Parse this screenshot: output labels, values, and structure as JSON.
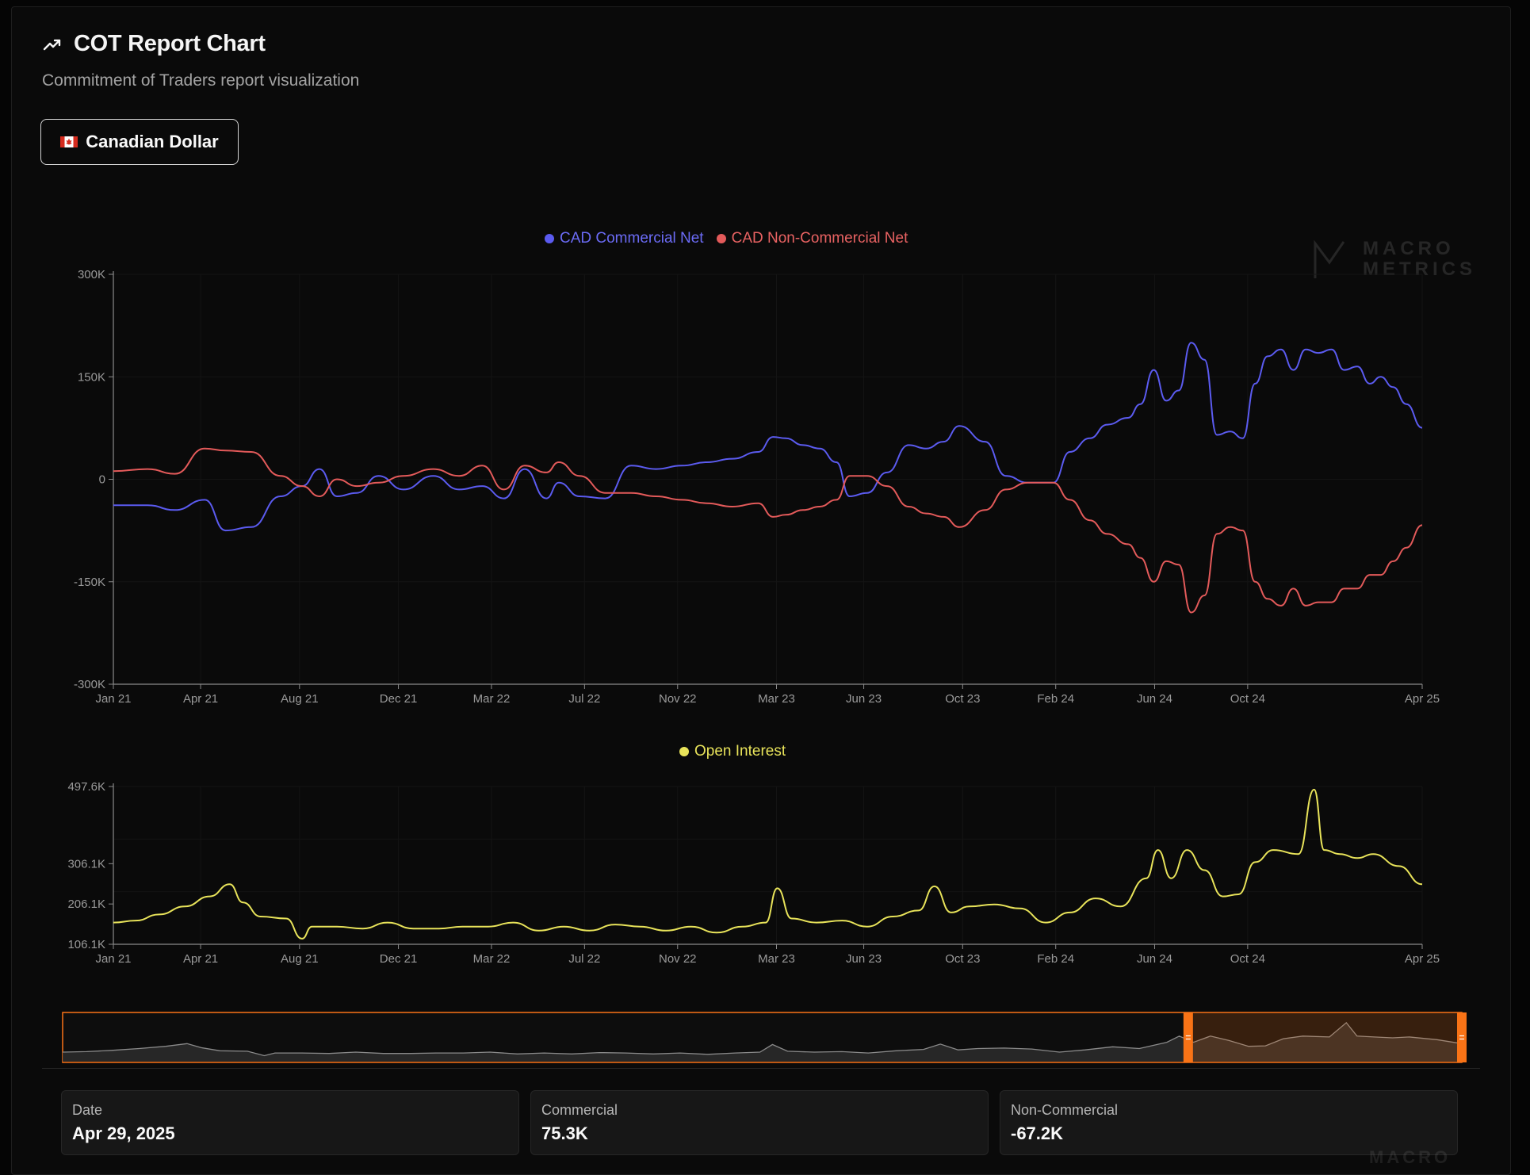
{
  "header": {
    "title": "COT Report Chart",
    "subtitle": "Commitment of Traders report visualization",
    "title_icon": "trending-up-icon"
  },
  "asset_selector": {
    "label": "Canadian Dollar",
    "flag_icon": "canada-flag-icon"
  },
  "watermark": {
    "line1": "MACRO",
    "line2": "METRICS"
  },
  "colors": {
    "commercial": "#5b5bf0",
    "non_commercial": "#e35a5a",
    "open_interest": "#e8e35a",
    "accent": "#f97316"
  },
  "chart_data": [
    {
      "type": "line",
      "legend": [
        "CAD Commercial Net",
        "CAD Non-Commercial Net"
      ],
      "x_ticks": [
        "Jan 21",
        "Apr 21",
        "Aug 21",
        "Dec 21",
        "Mar 22",
        "Jul 22",
        "Nov 22",
        "Mar 23",
        "Jun 23",
        "Oct 23",
        "Feb 24",
        "Jun 24",
        "Oct 24",
        "Apr 25"
      ],
      "y_ticks": [
        "300K",
        "150K",
        "0",
        "-150K",
        "-300K"
      ],
      "ylim": [
        -300000,
        300000
      ],
      "x_range": [
        "2021-01-05",
        "2025-04-29"
      ],
      "series": [
        {
          "name": "CAD Commercial Net",
          "x": [
            "2021-01-05",
            "2021-02-15",
            "2021-03-20",
            "2021-04-25",
            "2021-05-20",
            "2021-06-20",
            "2021-07-25",
            "2021-08-20",
            "2021-09-10",
            "2021-10-01",
            "2021-10-25",
            "2021-11-20",
            "2021-12-20",
            "2022-01-25",
            "2022-02-25",
            "2022-03-25",
            "2022-04-20",
            "2022-05-15",
            "2022-06-10",
            "2022-06-25",
            "2022-07-20",
            "2022-08-20",
            "2022-09-20",
            "2022-10-20",
            "2022-11-20",
            "2022-12-20",
            "2023-01-20",
            "2023-02-20",
            "2023-03-10",
            "2023-03-25",
            "2023-04-15",
            "2023-05-05",
            "2023-05-25",
            "2023-06-10",
            "2023-07-01",
            "2023-07-25",
            "2023-08-20",
            "2023-09-10",
            "2023-10-01",
            "2023-10-20",
            "2023-11-20",
            "2023-12-15",
            "2024-01-10",
            "2024-02-10",
            "2024-03-01",
            "2024-03-25",
            "2024-04-15",
            "2024-05-10",
            "2024-05-25",
            "2024-06-10",
            "2024-06-25",
            "2024-07-10",
            "2024-07-25",
            "2024-08-10",
            "2024-08-25",
            "2024-09-10",
            "2024-09-25",
            "2024-10-10",
            "2024-10-25",
            "2024-11-10",
            "2024-11-25",
            "2024-12-10",
            "2024-12-25",
            "2025-01-10",
            "2025-01-25",
            "2025-02-10",
            "2025-02-25",
            "2025-03-10",
            "2025-03-25",
            "2025-04-10",
            "2025-04-29"
          ],
          "values": [
            -38000,
            -38000,
            -45000,
            -30000,
            -75000,
            -70000,
            -25000,
            -10000,
            15000,
            -25000,
            -20000,
            5000,
            -15000,
            5000,
            -15000,
            -10000,
            -28000,
            15000,
            -28000,
            -5000,
            -25000,
            -28000,
            20000,
            15000,
            20000,
            25000,
            30000,
            40000,
            62000,
            60000,
            50000,
            45000,
            25000,
            -25000,
            -20000,
            10000,
            50000,
            45000,
            55000,
            78000,
            55000,
            5000,
            -5000,
            -5000,
            40000,
            60000,
            80000,
            90000,
            110000,
            160000,
            115000,
            130000,
            200000,
            175000,
            65000,
            70000,
            60000,
            140000,
            180000,
            190000,
            160000,
            190000,
            185000,
            190000,
            160000,
            165000,
            140000,
            150000,
            135000,
            110000,
            75300
          ]
        },
        {
          "name": "CAD Non-Commercial Net",
          "x": [
            "2021-01-05",
            "2021-02-15",
            "2021-03-20",
            "2021-04-25",
            "2021-05-20",
            "2021-06-20",
            "2021-07-25",
            "2021-08-20",
            "2021-09-10",
            "2021-10-01",
            "2021-10-25",
            "2021-11-20",
            "2021-12-20",
            "2022-01-25",
            "2022-02-25",
            "2022-03-25",
            "2022-04-20",
            "2022-05-15",
            "2022-06-10",
            "2022-06-25",
            "2022-07-20",
            "2022-08-20",
            "2022-09-20",
            "2022-10-20",
            "2022-11-20",
            "2022-12-20",
            "2023-01-20",
            "2023-02-20",
            "2023-03-10",
            "2023-03-25",
            "2023-04-15",
            "2023-05-05",
            "2023-05-25",
            "2023-06-10",
            "2023-07-01",
            "2023-07-25",
            "2023-08-20",
            "2023-09-10",
            "2023-10-01",
            "2023-10-20",
            "2023-11-20",
            "2023-12-15",
            "2024-01-10",
            "2024-02-10",
            "2024-03-01",
            "2024-03-25",
            "2024-04-15",
            "2024-05-10",
            "2024-05-25",
            "2024-06-10",
            "2024-06-25",
            "2024-07-10",
            "2024-07-25",
            "2024-08-10",
            "2024-08-25",
            "2024-09-10",
            "2024-09-25",
            "2024-10-10",
            "2024-10-25",
            "2024-11-10",
            "2024-11-25",
            "2024-12-10",
            "2024-12-25",
            "2025-01-10",
            "2025-01-25",
            "2025-02-10",
            "2025-02-25",
            "2025-03-10",
            "2025-03-25",
            "2025-04-10",
            "2025-04-29"
          ],
          "values": [
            12000,
            15000,
            8000,
            45000,
            42000,
            40000,
            5000,
            -10000,
            -25000,
            0,
            -10000,
            -5000,
            5000,
            15000,
            5000,
            20000,
            -15000,
            20000,
            10000,
            25000,
            5000,
            -20000,
            -20000,
            -25000,
            -30000,
            -35000,
            -40000,
            -35000,
            -55000,
            -52000,
            -45000,
            -40000,
            -30000,
            5000,
            5000,
            -10000,
            -40000,
            -50000,
            -55000,
            -70000,
            -45000,
            -15000,
            -5000,
            -5000,
            -30000,
            -60000,
            -80000,
            -95000,
            -115000,
            -150000,
            -120000,
            -125000,
            -195000,
            -170000,
            -80000,
            -70000,
            -75000,
            -150000,
            -175000,
            -185000,
            -160000,
            -185000,
            -180000,
            -180000,
            -160000,
            -160000,
            -140000,
            -140000,
            -120000,
            -100000,
            -67200
          ]
        }
      ]
    },
    {
      "type": "line",
      "legend": [
        "Open Interest"
      ],
      "x_ticks": [
        "Jan 21",
        "Apr 21",
        "Aug 21",
        "Dec 21",
        "Mar 22",
        "Jul 22",
        "Nov 22",
        "Mar 23",
        "Jun 23",
        "Oct 23",
        "Feb 24",
        "Jun 24",
        "Oct 24",
        "Apr 25"
      ],
      "y_ticks": [
        "497.6K",
        "306.1K",
        "206.1K",
        "106.1K"
      ],
      "ylim": [
        106100,
        497600
      ],
      "x_range": [
        "2021-01-05",
        "2025-04-29"
      ],
      "series": [
        {
          "name": "Open Interest",
          "x": [
            "2021-01-05",
            "2021-02-01",
            "2021-03-01",
            "2021-04-01",
            "2021-05-01",
            "2021-05-25",
            "2021-06-10",
            "2021-07-01",
            "2021-08-01",
            "2021-08-20",
            "2021-09-01",
            "2021-10-01",
            "2021-11-01",
            "2021-12-01",
            "2022-01-01",
            "2022-02-01",
            "2022-03-01",
            "2022-04-01",
            "2022-05-01",
            "2022-06-01",
            "2022-07-01",
            "2022-08-01",
            "2022-09-01",
            "2022-10-01",
            "2022-11-01",
            "2022-12-01",
            "2023-01-01",
            "2023-02-01",
            "2023-03-01",
            "2023-03-15",
            "2023-04-01",
            "2023-05-01",
            "2023-06-01",
            "2023-07-01",
            "2023-08-01",
            "2023-09-01",
            "2023-09-20",
            "2023-10-10",
            "2023-11-01",
            "2023-12-01",
            "2024-01-01",
            "2024-02-01",
            "2024-03-01",
            "2024-04-01",
            "2024-05-01",
            "2024-06-01",
            "2024-06-15",
            "2024-07-01",
            "2024-07-20",
            "2024-08-10",
            "2024-09-01",
            "2024-09-20",
            "2024-10-10",
            "2024-11-01",
            "2024-12-01",
            "2024-12-20",
            "2025-01-01",
            "2025-01-20",
            "2025-02-10",
            "2025-03-01",
            "2025-04-01",
            "2025-04-29"
          ],
          "values": [
            160000,
            165000,
            180000,
            200000,
            225000,
            255000,
            210000,
            175000,
            170000,
            120000,
            150000,
            150000,
            145000,
            160000,
            145000,
            145000,
            150000,
            150000,
            160000,
            140000,
            150000,
            140000,
            155000,
            150000,
            140000,
            150000,
            135000,
            150000,
            160000,
            245000,
            170000,
            160000,
            165000,
            150000,
            175000,
            190000,
            250000,
            185000,
            200000,
            205000,
            195000,
            160000,
            185000,
            220000,
            200000,
            270000,
            340000,
            270000,
            340000,
            290000,
            225000,
            230000,
            310000,
            340000,
            330000,
            490000,
            340000,
            330000,
            320000,
            330000,
            300000,
            255000
          ]
        }
      ]
    }
  ],
  "navigator": {
    "series": "Open Interest",
    "selected_from": "2024-06-25",
    "selected_to": "2025-04-29"
  },
  "stats": [
    {
      "label": "Date",
      "value": "Apr 29, 2025"
    },
    {
      "label": "Commercial",
      "value": "75.3K"
    },
    {
      "label": "Non-Commercial",
      "value": "-67.2K"
    }
  ]
}
